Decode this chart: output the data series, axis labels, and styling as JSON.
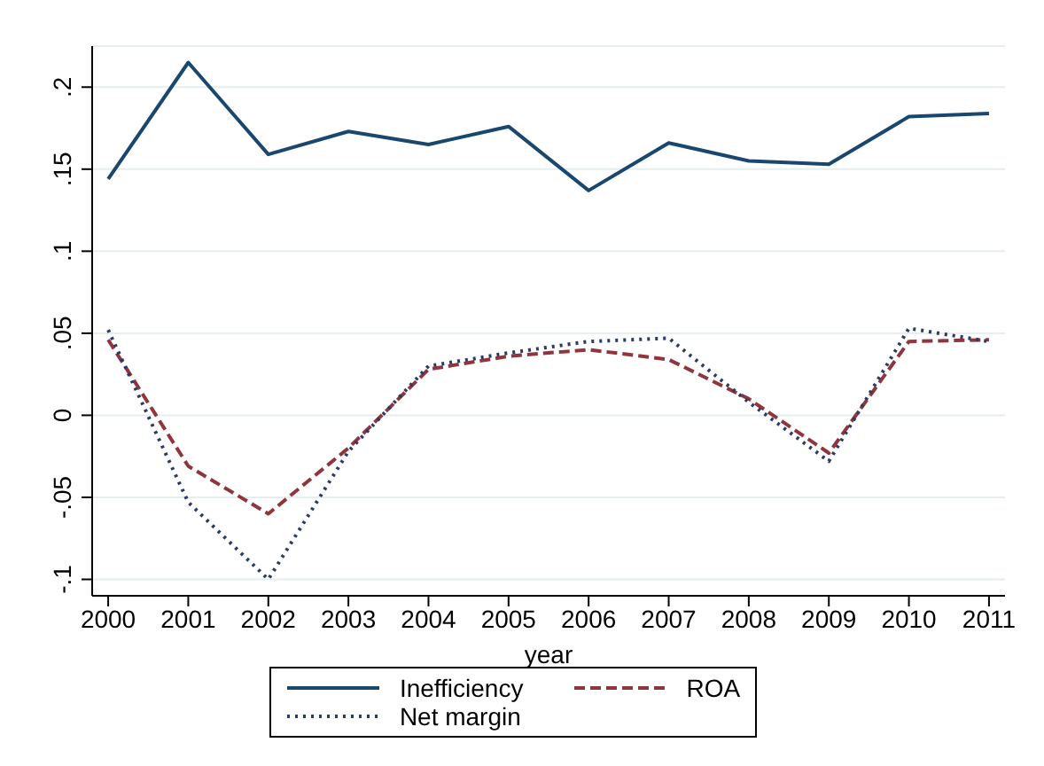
{
  "chart_data": {
    "type": "line",
    "xlabel": "year",
    "x": [
      2000,
      2001,
      2002,
      2003,
      2004,
      2005,
      2006,
      2007,
      2008,
      2009,
      2010,
      2011
    ],
    "series": [
      {
        "name": "Inefficiency",
        "color": "#1a476f",
        "line_style": "solid",
        "values": [
          0.144,
          0.215,
          0.159,
          0.173,
          0.165,
          0.176,
          0.137,
          0.166,
          0.155,
          0.153,
          0.182,
          0.184
        ]
      },
      {
        "name": "ROA",
        "color": "#90353b",
        "line_style": "dashed",
        "values": [
          0.046,
          -0.031,
          -0.06,
          -0.02,
          0.028,
          0.036,
          0.04,
          0.034,
          0.01,
          -0.023,
          0.045,
          0.046
        ]
      },
      {
        "name": "Net margin",
        "color": "#2b3a67",
        "line_style": "dotted",
        "values": [
          0.052,
          -0.053,
          -0.1,
          -0.022,
          0.03,
          0.038,
          0.045,
          0.047,
          0.008,
          -0.028,
          0.053,
          0.045
        ]
      }
    ],
    "xlim": [
      1999.8,
      2011.2
    ],
    "xticks": [
      2000,
      2001,
      2002,
      2003,
      2004,
      2005,
      2006,
      2007,
      2008,
      2009,
      2010,
      2011
    ],
    "ylim": [
      -0.11,
      0.225
    ],
    "yticks": [
      {
        "value": -0.1,
        "label": "-.1"
      },
      {
        "value": -0.05,
        "label": "-.05"
      },
      0,
      {
        "value": 0.05,
        "label": ".05"
      },
      {
        "value": 0.1,
        "label": ".1"
      },
      {
        "value": 0.15,
        "label": ".15"
      },
      {
        "value": 0.2,
        "label": ".2"
      }
    ],
    "grid": "y",
    "legend": "bottom",
    "marker": "none"
  }
}
